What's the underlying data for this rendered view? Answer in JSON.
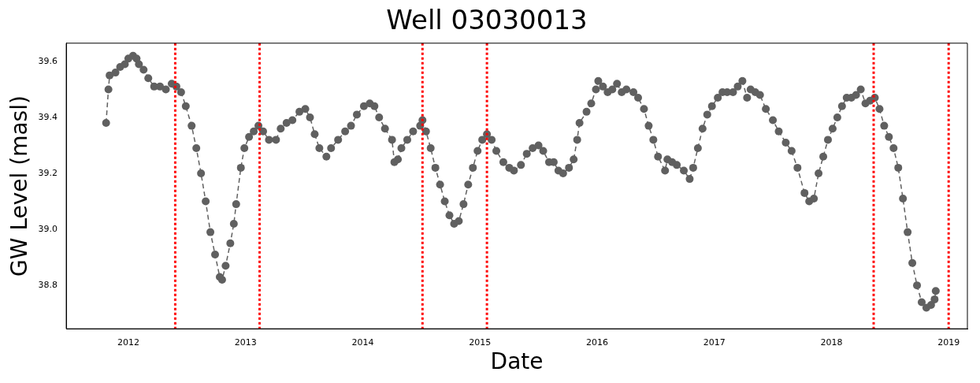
{
  "chart_data": {
    "type": "line",
    "title": "Well 03030013",
    "xlabel": "Date",
    "ylabel": "GW Level (masl)",
    "xlim": [
      2011.47,
      2019.16
    ],
    "ylim": [
      38.645,
      39.665
    ],
    "xticks": [
      2012,
      2013,
      2014,
      2015,
      2016,
      2017,
      2018,
      2019
    ],
    "yticks": [
      38.8,
      {
        "value": 39.0,
        "label": "39.0"
      },
      39.2,
      39.4,
      39.6
    ],
    "grid": false,
    "legend": false,
    "marker": "circle",
    "line_style": "dashed",
    "series": [
      {
        "color": "#606060",
        "x": [
          2011.81,
          2011.83,
          2011.84,
          2011.89,
          2011.93,
          2011.97,
          2012.0,
          2012.04,
          2012.07,
          2012.09,
          2012.13,
          2012.17,
          2012.22,
          2012.27,
          2012.32,
          2012.37,
          2012.41,
          2012.45,
          2012.49,
          2012.54,
          2012.58,
          2012.62,
          2012.66,
          2012.7,
          2012.74,
          2012.78,
          2012.8,
          2012.83,
          2012.87,
          2012.9,
          2012.92,
          2012.96,
          2012.99,
          2013.03,
          2013.07,
          2013.11,
          2013.15,
          2013.2,
          2013.26,
          2013.3,
          2013.35,
          2013.4,
          2013.46,
          2013.51,
          2013.55,
          2013.59,
          2013.63,
          2013.69,
          2013.73,
          2013.79,
          2013.85,
          2013.9,
          2013.95,
          2014.01,
          2014.06,
          2014.1,
          2014.14,
          2014.19,
          2014.25,
          2014.27,
          2014.3,
          2014.33,
          2014.38,
          2014.43,
          2014.49,
          2014.51,
          2014.54,
          2014.58,
          2014.62,
          2014.66,
          2014.7,
          2014.74,
          2014.78,
          2014.82,
          2014.86,
          2014.9,
          2014.94,
          2014.98,
          2015.02,
          2015.06,
          2015.1,
          2015.14,
          2015.2,
          2015.25,
          2015.29,
          2015.35,
          2015.4,
          2015.45,
          2015.5,
          2015.54,
          2015.59,
          2015.63,
          2015.67,
          2015.71,
          2015.76,
          2015.8,
          2015.83,
          2015.85,
          2015.91,
          2015.95,
          2015.99,
          2016.01,
          2016.05,
          2016.09,
          2016.13,
          2016.17,
          2016.21,
          2016.25,
          2016.31,
          2016.35,
          2016.4,
          2016.44,
          2016.48,
          2016.52,
          2016.58,
          2016.6,
          2016.64,
          2016.68,
          2016.74,
          2016.79,
          2016.82,
          2016.86,
          2016.9,
          2016.94,
          2016.98,
          2017.03,
          2017.07,
          2017.11,
          2017.16,
          2017.2,
          2017.24,
          2017.28,
          2017.31,
          2017.35,
          2017.39,
          2017.44,
          2017.5,
          2017.55,
          2017.61,
          2017.66,
          2017.71,
          2017.77,
          2017.81,
          2017.85,
          2017.89,
          2017.93,
          2017.97,
          2018.01,
          2018.05,
          2018.09,
          2018.13,
          2018.17,
          2018.21,
          2018.25,
          2018.29,
          2018.33,
          2018.37,
          2018.41,
          2018.45,
          2018.49,
          2018.53,
          2018.57,
          2018.61,
          2018.65,
          2018.69,
          2018.73,
          2018.77,
          2018.81,
          2018.85,
          2018.88,
          2018.89
        ],
        "values": [
          39.38,
          39.5,
          39.55,
          39.56,
          39.58,
          39.59,
          39.61,
          39.62,
          39.61,
          39.59,
          39.57,
          39.54,
          39.51,
          39.51,
          39.5,
          39.52,
          39.51,
          39.49,
          39.44,
          39.37,
          39.29,
          39.2,
          39.1,
          38.99,
          38.91,
          38.83,
          38.82,
          38.87,
          38.95,
          39.02,
          39.09,
          39.22,
          39.29,
          39.33,
          39.35,
          39.37,
          39.35,
          39.32,
          39.32,
          39.36,
          39.38,
          39.39,
          39.42,
          39.43,
          39.4,
          39.34,
          39.29,
          39.26,
          39.29,
          39.32,
          39.35,
          39.37,
          39.41,
          39.44,
          39.45,
          39.44,
          39.4,
          39.36,
          39.32,
          39.24,
          39.25,
          39.29,
          39.32,
          39.35,
          39.37,
          39.39,
          39.35,
          39.29,
          39.22,
          39.16,
          39.1,
          39.05,
          39.02,
          39.03,
          39.09,
          39.16,
          39.22,
          39.28,
          39.32,
          39.34,
          39.32,
          39.28,
          39.24,
          39.22,
          39.21,
          39.23,
          39.27,
          39.29,
          39.3,
          39.28,
          39.24,
          39.24,
          39.21,
          39.2,
          39.22,
          39.25,
          39.32,
          39.38,
          39.42,
          39.45,
          39.5,
          39.53,
          39.51,
          39.49,
          39.5,
          39.52,
          39.49,
          39.5,
          39.49,
          39.47,
          39.43,
          39.37,
          39.32,
          39.26,
          39.21,
          39.25,
          39.24,
          39.23,
          39.21,
          39.18,
          39.22,
          39.29,
          39.36,
          39.41,
          39.44,
          39.47,
          39.49,
          39.49,
          39.49,
          39.51,
          39.53,
          39.47,
          39.5,
          39.49,
          39.48,
          39.43,
          39.39,
          39.35,
          39.31,
          39.28,
          39.22,
          39.13,
          39.1,
          39.11,
          39.2,
          39.26,
          39.32,
          39.36,
          39.4,
          39.44,
          39.47,
          39.47,
          39.48,
          39.5,
          39.45,
          39.46,
          39.47,
          39.43,
          39.37,
          39.33,
          39.29,
          39.22,
          39.11,
          38.99,
          38.88,
          38.8,
          38.74,
          38.72,
          38.73,
          38.75,
          38.78
        ]
      }
    ],
    "ref_lines": [
      {
        "axis": "x",
        "value": 2012.4,
        "color": "#ff0000",
        "line_style": "dotted"
      },
      {
        "axis": "x",
        "value": 2013.12,
        "color": "#ff0000",
        "line_style": "dotted"
      },
      {
        "axis": "x",
        "value": 2014.51,
        "color": "#ff0000",
        "line_style": "dotted"
      },
      {
        "axis": "x",
        "value": 2015.06,
        "color": "#ff0000",
        "line_style": "dotted"
      },
      {
        "axis": "x",
        "value": 2018.36,
        "color": "#ff0000",
        "line_style": "dotted"
      },
      {
        "axis": "x",
        "value": 2019.0,
        "color": "#ff0000",
        "line_style": "dotted"
      }
    ]
  }
}
